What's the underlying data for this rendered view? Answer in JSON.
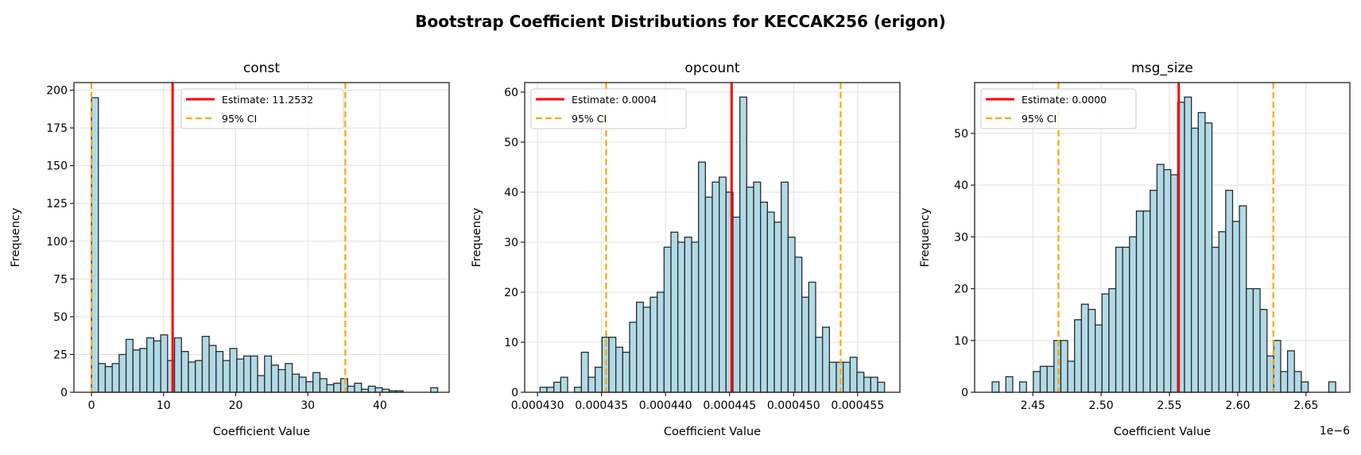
{
  "figure": {
    "title": "Bootstrap Coefficient Distributions for KECCAK256 (erigon)"
  },
  "colors": {
    "bar_fill": "#add8e6",
    "bar_edge": "#000000",
    "estimate": "#ff0000",
    "ci": "#ffa500",
    "grid": "#e0e0e0"
  },
  "chart_data": [
    {
      "type": "bar",
      "title": "const",
      "xlabel": "Coefficient Value",
      "ylabel": "Frequency",
      "xlim": [
        -2.43,
        49.6
      ],
      "ylim": [
        0,
        205
      ],
      "xticks": [
        0,
        10,
        20,
        30,
        40
      ],
      "xtick_labels": [
        "0",
        "10",
        "20",
        "30",
        "40"
      ],
      "yticks": [
        0,
        25,
        50,
        75,
        100,
        125,
        150,
        175,
        200
      ],
      "ytick_labels": [
        "0",
        "25",
        "50",
        "75",
        "100",
        "125",
        "150",
        "175",
        "200"
      ],
      "offset_label": "",
      "grid": true,
      "legend_position": "top-center",
      "bin_start": 0,
      "bin_width": 0.96,
      "counts": [
        195,
        19,
        17,
        19,
        25,
        35,
        28,
        29,
        36,
        34,
        38,
        21,
        36,
        27,
        20,
        21,
        37,
        31,
        27,
        21,
        29,
        22,
        24,
        24,
        11,
        24,
        18,
        15,
        19,
        12,
        10,
        7,
        13,
        9,
        5,
        6,
        9,
        4,
        6,
        2,
        4,
        3,
        2,
        1,
        1,
        0,
        0,
        0,
        0,
        3
      ],
      "estimate": 11.2532,
      "ci": [
        0.0,
        35.2
      ],
      "legend": [
        "Estimate: 11.2532",
        "95% CI"
      ]
    },
    {
      "type": "bar",
      "title": "opcount",
      "xlabel": "Coefficient Value",
      "ylabel": "Frequency",
      "xlim": [
        0.000429,
        0.0004583
      ],
      "ylim": [
        0,
        61.9
      ],
      "xticks": [
        0.00043,
        0.000435,
        0.00044,
        0.000445,
        0.00045,
        0.000455
      ],
      "xtick_labels": [
        "0.000430",
        "0.000435",
        "0.000440",
        "0.000445",
        "0.000450",
        "0.000455"
      ],
      "yticks": [
        0,
        10,
        20,
        30,
        40,
        50,
        60
      ],
      "ytick_labels": [
        "0",
        "10",
        "20",
        "30",
        "40",
        "50",
        "60"
      ],
      "offset_label": "",
      "grid": true,
      "legend_position": "top-left",
      "bin_start": 0.0004302,
      "bin_width": 5.38e-07,
      "counts": [
        1,
        1,
        2,
        3,
        0,
        1,
        8,
        3,
        5,
        11,
        11,
        9,
        8,
        14,
        18,
        17,
        19,
        20,
        29,
        32,
        30,
        31,
        30,
        46,
        39,
        42,
        43,
        40,
        35,
        59,
        41,
        42,
        38,
        36,
        34,
        42,
        31,
        27,
        19,
        22,
        11,
        13,
        6,
        6,
        6,
        7,
        4,
        3,
        3,
        2
      ],
      "estimate": 0.00044516,
      "ci": [
        0.00043536,
        0.00045367
      ],
      "legend": [
        "Estimate: 0.0004",
        "95% CI"
      ]
    },
    {
      "type": "bar",
      "title": "msg_size",
      "xlabel": "Coefficient Value",
      "ylabel": "Frequency",
      "xlim": [
        2.4074,
        2.6821
      ],
      "ylim": [
        0,
        59.8
      ],
      "xticks": [
        2.45,
        2.5,
        2.55,
        2.6,
        2.65
      ],
      "xtick_labels": [
        "2.45",
        "2.50",
        "2.55",
        "2.60",
        "2.65"
      ],
      "yticks": [
        0,
        10,
        20,
        30,
        40,
        50
      ],
      "ytick_labels": [
        "0",
        "10",
        "20",
        "30",
        "40",
        "50"
      ],
      "offset_label": "1e−6",
      "grid": true,
      "legend_position": "top-left",
      "bin_start": 2.4202,
      "bin_width": 0.00503,
      "counts": [
        2,
        0,
        3,
        0,
        2,
        0,
        4,
        5,
        5,
        10,
        10,
        6,
        14,
        17,
        16,
        13,
        19,
        20,
        28,
        28,
        30,
        35,
        35,
        39,
        44,
        43,
        42,
        56,
        57,
        51,
        54,
        52,
        28,
        31,
        39,
        33,
        36,
        20,
        20,
        16,
        7,
        10,
        4,
        8,
        4,
        2,
        0,
        0,
        0,
        2
      ],
      "estimate": 2.5568,
      "ci": [
        2.4688,
        2.6261
      ],
      "legend": [
        "Estimate: 0.0000",
        "95% CI"
      ]
    }
  ]
}
